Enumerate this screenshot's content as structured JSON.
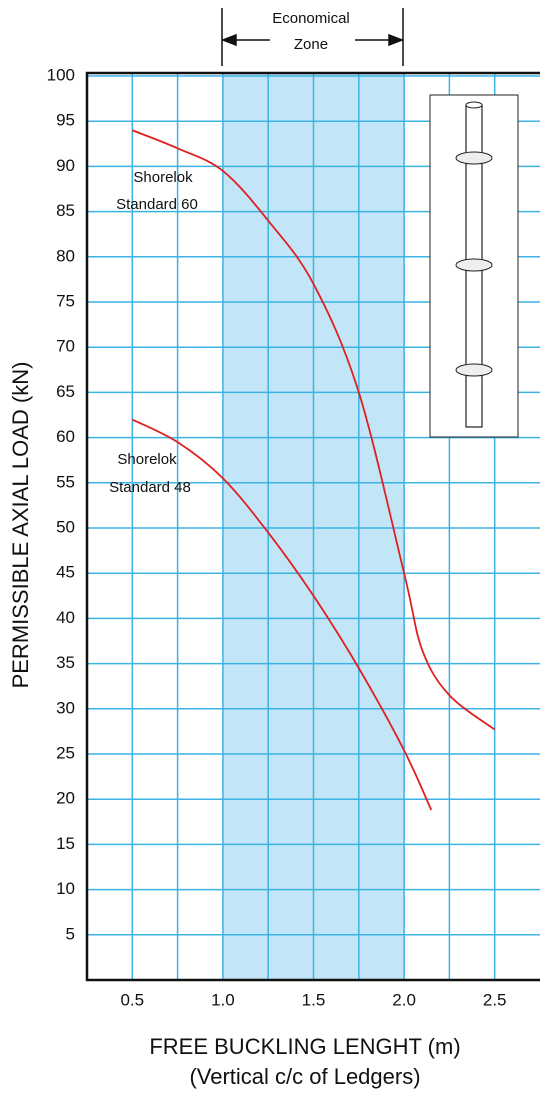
{
  "chart_data": {
    "type": "line",
    "ylabel": "PERMISSIBLE AXIAL LOAD (kN)",
    "xlabel": [
      "FREE BUCKLING LENGHT  (m)",
      "(Vertical c/c of Ledgers)"
    ],
    "zone_label": [
      "Economical",
      "Zone"
    ],
    "zone": [
      {
        "value": 1,
        "label": "1.0"
      },
      {
        "value": 2,
        "label": "2.0"
      }
    ],
    "zone_color": "#c2e6f7",
    "xlim": [
      0.25,
      2.75
    ],
    "ylim": [
      0,
      100
    ],
    "xticks": [
      0.5,
      {
        "value": 1,
        "label": "1.0"
      },
      1.5,
      {
        "value": 2,
        "label": "2.0"
      },
      2.5
    ],
    "x_minor_grid": [
      0.75,
      1.25,
      1.75,
      2.25
    ],
    "yticks": [
      5,
      10,
      15,
      20,
      25,
      30,
      35,
      40,
      45,
      50,
      55,
      60,
      65,
      70,
      75,
      80,
      85,
      90,
      95,
      100
    ],
    "grid": true,
    "grid_color": "#3cb3e3",
    "series": [
      {
        "name": [
          "Shorelok",
          "Standard 60"
        ],
        "color": "#e02020",
        "x": [
          0.5,
          0.75,
          1.0,
          1.25,
          1.5,
          1.75,
          2.0,
          2.1,
          2.25,
          2.5
        ],
        "values": [
          94,
          92,
          89.5,
          84,
          77,
          65,
          45,
          36.5,
          31.5,
          27.7
        ]
      },
      {
        "name": [
          "Shorelok",
          "Standard 48"
        ],
        "color": "#e02020",
        "x": [
          0.5,
          0.75,
          1.0,
          1.25,
          1.5,
          1.75,
          2.0,
          2.15
        ],
        "values": [
          62,
          59.5,
          55.5,
          49.5,
          42.5,
          34.5,
          25.4,
          18.8
        ]
      }
    ]
  }
}
